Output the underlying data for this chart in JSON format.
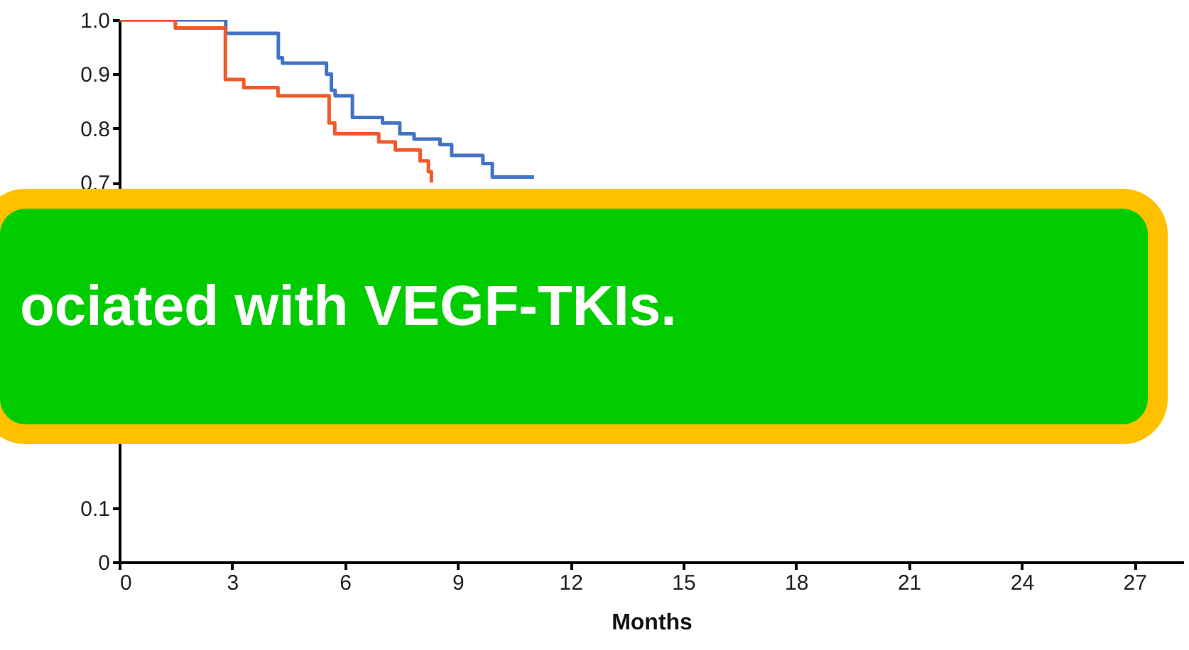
{
  "chart_data": {
    "type": "step",
    "xlabel": "Months",
    "xlim": [
      0,
      28.3
    ],
    "xticks": [
      0,
      3,
      6,
      9,
      12,
      15,
      18,
      21,
      24,
      27
    ],
    "ylim": [
      0,
      1.0
    ],
    "yticks": [
      0,
      0.1,
      0.7,
      0.8,
      {
        "value": 0.9,
        "label": "0.9"
      },
      {
        "value": 1.0,
        "label": "1.0"
      }
    ],
    "annotations": [
      "ociated with VEGF-TKIs."
    ],
    "series": [
      {
        "color": "#4472c4",
        "x": [
          0,
          2.83,
          4.23,
          4.34,
          5.51,
          5.64,
          5.74,
          6.2,
          7.0,
          7.46,
          7.84,
          8.53,
          8.84,
          9.67,
          9.92,
          11.03
        ],
        "values": [
          1.0,
          0.975,
          0.93,
          0.92,
          0.9,
          0.87,
          0.86,
          0.82,
          0.81,
          0.79,
          0.78,
          0.77,
          0.75,
          0.735,
          0.71,
          0.71
        ]
      },
      {
        "color": "#f05a28",
        "x": [
          0,
          1.49,
          2.82,
          3.31,
          4.22,
          5.58,
          5.73,
          6.9,
          7.34,
          8.0,
          8.22,
          8.3
        ],
        "values": [
          1.0,
          0.985,
          0.89,
          0.875,
          0.86,
          0.81,
          0.79,
          0.775,
          0.76,
          0.74,
          0.72,
          0.7
        ]
      }
    ]
  }
}
